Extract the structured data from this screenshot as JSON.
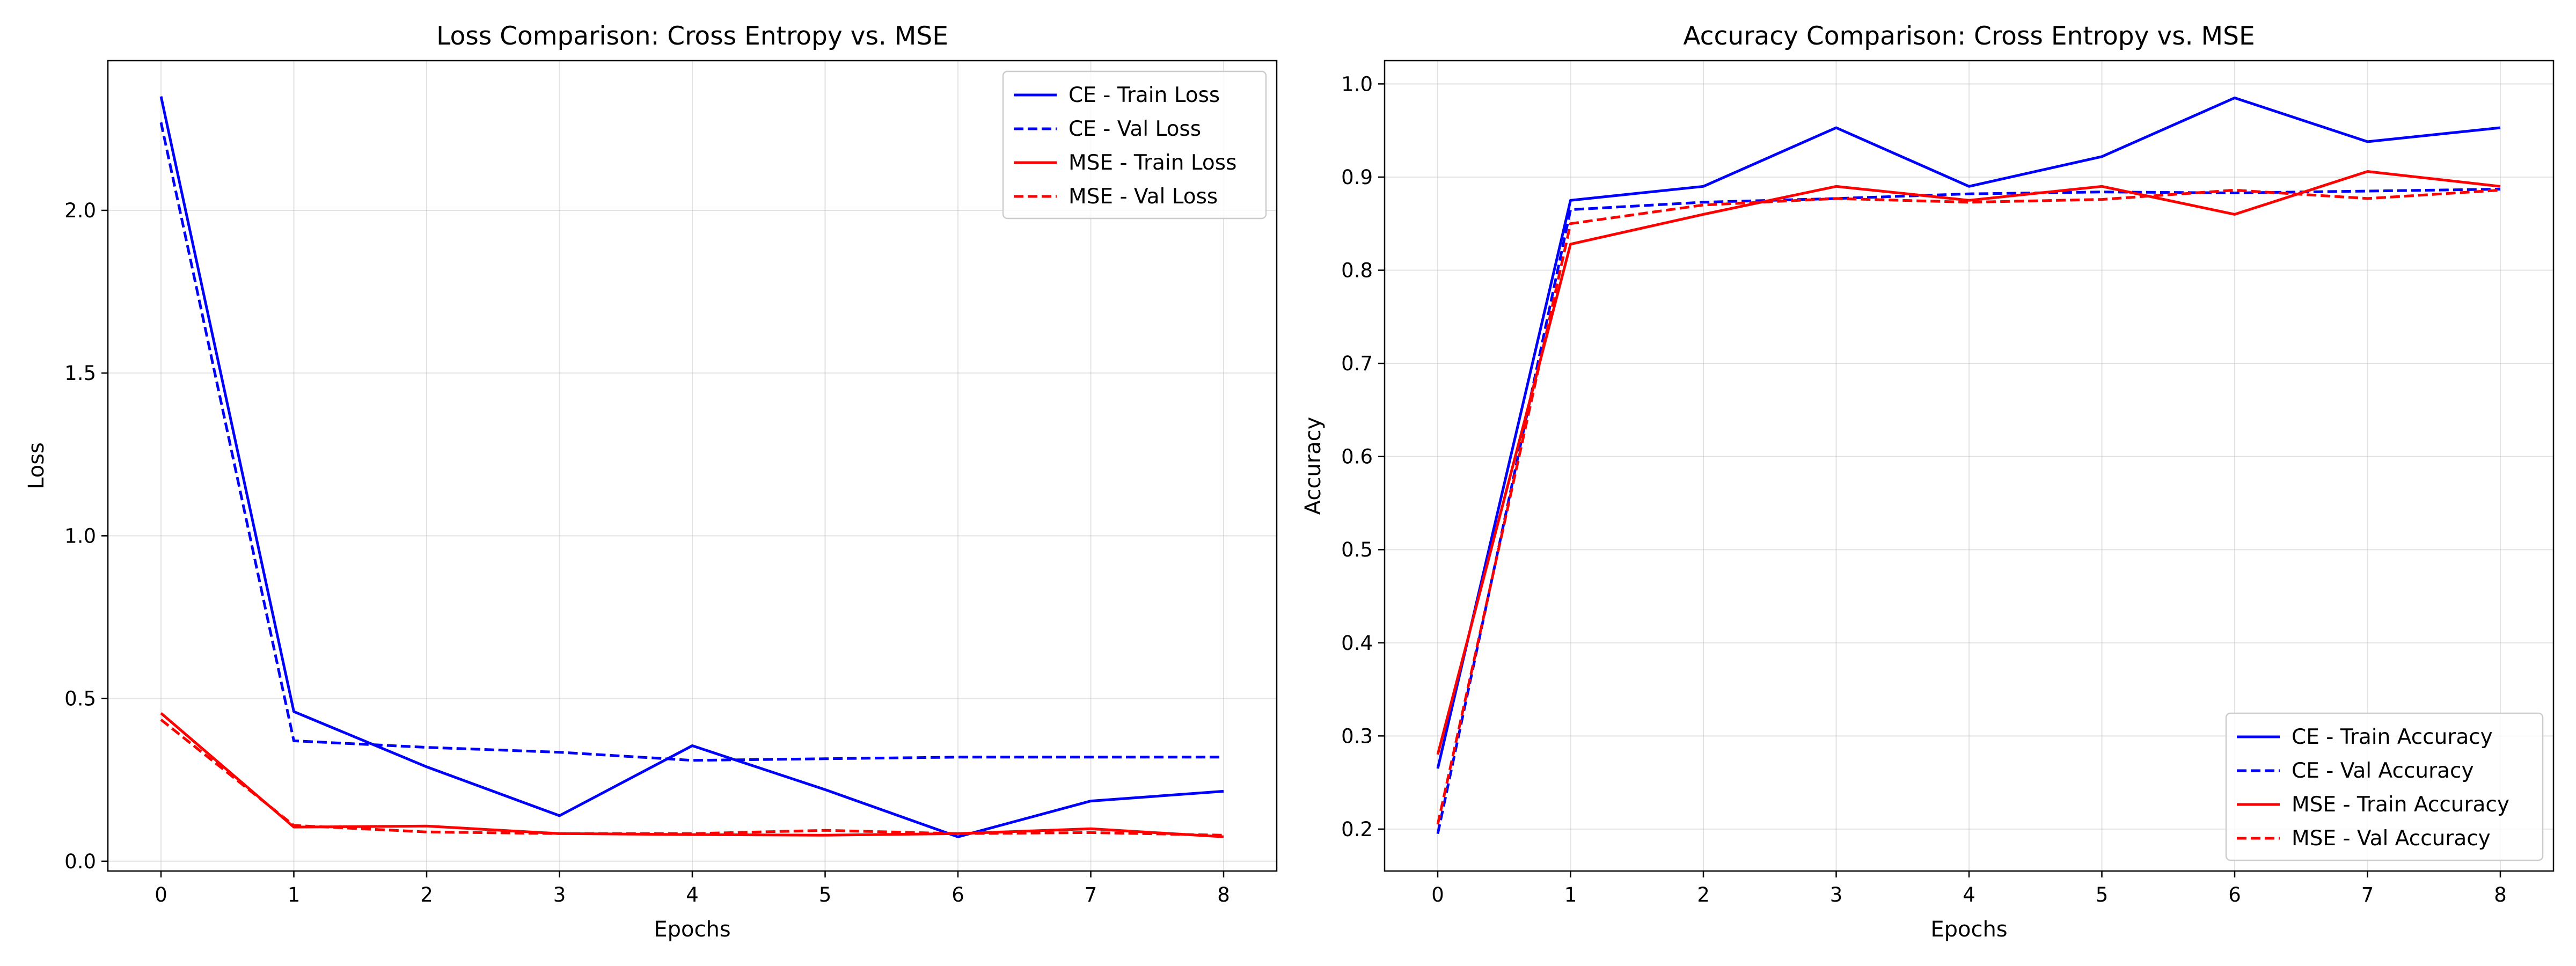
{
  "chart_data": [
    {
      "type": "line",
      "title": "Loss Comparison: Cross Entropy vs. MSE",
      "xlabel": "Epochs",
      "ylabel": "Loss",
      "x": [
        0,
        1,
        2,
        3,
        4,
        5,
        6,
        7,
        8
      ],
      "xlim": [
        -0.4,
        8.4
      ],
      "ylim": [
        -0.03,
        2.46
      ],
      "xticks": [
        0,
        1,
        2,
        3,
        4,
        5,
        6,
        7,
        8
      ],
      "yticks": [
        0.0,
        0.5,
        1.0,
        1.5,
        2.0
      ],
      "ytick_labels": [
        "0.0",
        "0.5",
        "1.0",
        "1.5",
        "2.0"
      ],
      "grid": true,
      "legend_position": "upper right",
      "series": [
        {
          "name": "CE - Train Loss",
          "color": "#0000ff",
          "dash": "solid",
          "values": [
            2.35,
            0.46,
            0.29,
            0.14,
            0.355,
            0.22,
            0.075,
            0.185,
            0.215
          ]
        },
        {
          "name": "CE - Val Loss",
          "color": "#0000ff",
          "dash": "dashed",
          "values": [
            2.27,
            0.37,
            0.35,
            0.335,
            0.31,
            0.315,
            0.32,
            0.32,
            0.32
          ]
        },
        {
          "name": "MSE - Train Loss",
          "color": "#ff0000",
          "dash": "solid",
          "values": [
            0.455,
            0.105,
            0.108,
            0.085,
            0.082,
            0.08,
            0.085,
            0.1,
            0.075
          ]
        },
        {
          "name": "MSE - Val Loss",
          "color": "#ff0000",
          "dash": "dashed",
          "values": [
            0.435,
            0.11,
            0.09,
            0.085,
            0.085,
            0.095,
            0.085,
            0.088,
            0.08
          ]
        }
      ]
    },
    {
      "type": "line",
      "title": "Accuracy Comparison: Cross Entropy vs. MSE",
      "xlabel": "Epochs",
      "ylabel": "Accuracy",
      "x": [
        0,
        1,
        2,
        3,
        4,
        5,
        6,
        7,
        8
      ],
      "xlim": [
        -0.4,
        8.4
      ],
      "ylim": [
        0.155,
        1.025
      ],
      "xticks": [
        0,
        1,
        2,
        3,
        4,
        5,
        6,
        7,
        8
      ],
      "yticks": [
        0.2,
        0.3,
        0.4,
        0.5,
        0.6,
        0.7,
        0.8,
        0.9,
        1.0
      ],
      "ytick_labels": [
        "0.2",
        "0.3",
        "0.4",
        "0.5",
        "0.6",
        "0.7",
        "0.8",
        "0.9",
        "1.0"
      ],
      "grid": true,
      "legend_position": "lower right",
      "series": [
        {
          "name": "CE - Train Accuracy",
          "color": "#0000ff",
          "dash": "solid",
          "values": [
            0.265,
            0.875,
            0.89,
            0.953,
            0.89,
            0.922,
            0.985,
            0.938,
            0.953
          ]
        },
        {
          "name": "CE - Val Accuracy",
          "color": "#0000ff",
          "dash": "dashed",
          "values": [
            0.195,
            0.865,
            0.873,
            0.877,
            0.882,
            0.884,
            0.883,
            0.885,
            0.887
          ]
        },
        {
          "name": "MSE - Train Accuracy",
          "color": "#ff0000",
          "dash": "solid",
          "values": [
            0.28,
            0.828,
            0.86,
            0.89,
            0.875,
            0.89,
            0.86,
            0.906,
            0.89
          ]
        },
        {
          "name": "MSE - Val Accuracy",
          "color": "#ff0000",
          "dash": "dashed",
          "values": [
            0.205,
            0.85,
            0.87,
            0.877,
            0.873,
            0.876,
            0.886,
            0.877,
            0.886
          ]
        }
      ]
    }
  ]
}
